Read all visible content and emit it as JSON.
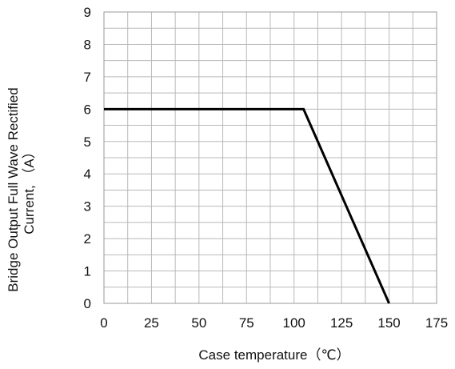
{
  "chart_data": {
    "type": "line",
    "title": "",
    "xlabel": "Case temperature（℃）",
    "ylabel_line1": "Bridge Output Full Wave Rectified",
    "ylabel_line2": "Current, （A）",
    "xlim": [
      0,
      175
    ],
    "ylim": [
      0,
      9
    ],
    "x_ticks": [
      "0",
      "25",
      "50",
      "75",
      "100",
      "125",
      "150",
      "175"
    ],
    "y_ticks": [
      "0",
      "1",
      "2",
      "3",
      "4",
      "5",
      "6",
      "7",
      "8",
      "9"
    ],
    "x_minor_step": 12.5,
    "y_minor_step": 0.5,
    "grid": true,
    "series": [
      {
        "x": [
          0,
          105,
          150
        ],
        "y": [
          6,
          6,
          0
        ],
        "color": "#000000"
      }
    ]
  }
}
